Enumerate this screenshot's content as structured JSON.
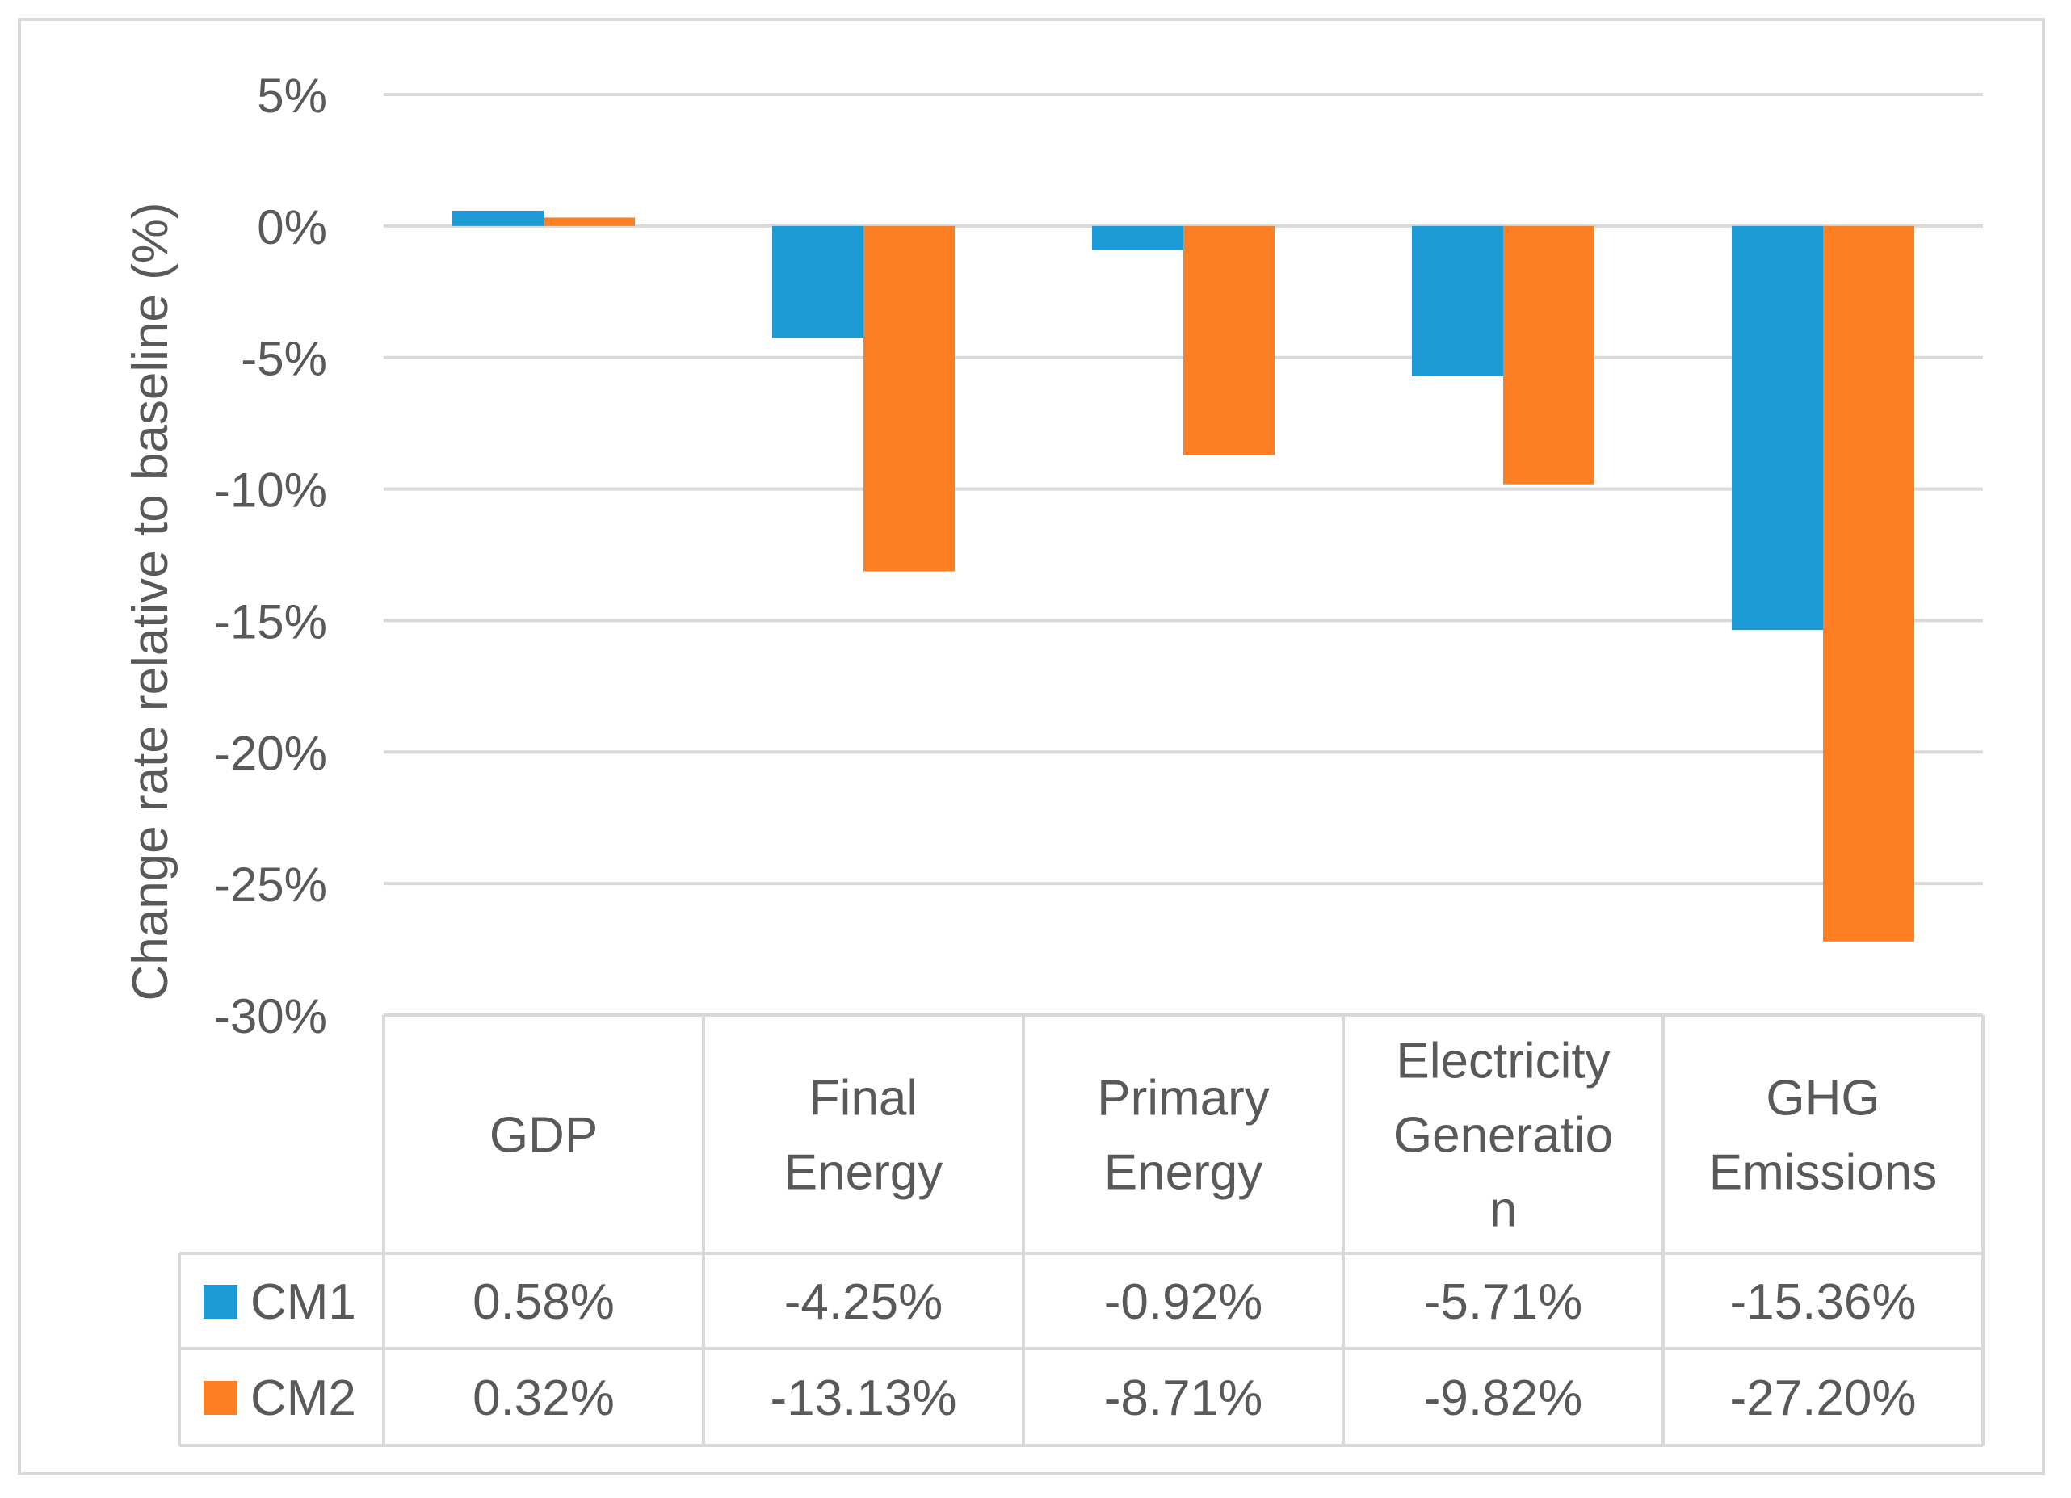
{
  "chart_data": {
    "type": "bar",
    "title": "",
    "xlabel": "",
    "ylabel": "Change rate relative to baseline (%)",
    "ylim": [
      -30,
      5
    ],
    "yticks": [
      5,
      0,
      -5,
      -10,
      -15,
      -20,
      -25,
      -30
    ],
    "ytick_labels": [
      "5%",
      "0%",
      "-5%",
      "-10%",
      "-15%",
      "-20%",
      "-25%",
      "-30%"
    ],
    "grid": true,
    "categories": [
      [
        "GDP"
      ],
      [
        "Final",
        "Energy"
      ],
      [
        "Primary",
        "Energy"
      ],
      [
        "Electricity",
        "Generatio",
        "n"
      ],
      [
        "GHG",
        "Emissions"
      ]
    ],
    "series": [
      {
        "name": "CM1",
        "color": "#1b9ad6",
        "values": [
          0.58,
          -4.25,
          -0.92,
          -5.71,
          -15.36
        ],
        "labels": [
          "0.58%",
          "-4.25%",
          "-0.92%",
          "-5.71%",
          "-15.36%"
        ]
      },
      {
        "name": "CM2",
        "color": "#fd7f23",
        "values": [
          0.32,
          -13.13,
          -8.71,
          -9.82,
          -27.2
        ],
        "labels": [
          "0.32%",
          "-13.13%",
          "-8.71%",
          "-9.82%",
          "-27.20%"
        ]
      }
    ],
    "legend": "data-table"
  }
}
